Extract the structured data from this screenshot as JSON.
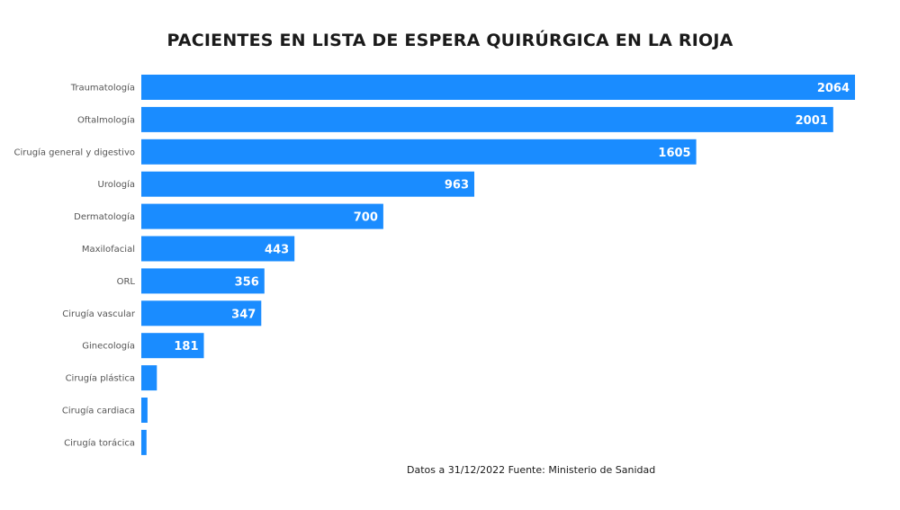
{
  "chart_data": {
    "type": "bar",
    "orientation": "horizontal",
    "title": "PACIENTES EN LISTA DE ESPERA QUIRÚRGICA EN LA RIOJA",
    "categories": [
      "Traumatología",
      "Oftalmología",
      "Cirugía general y digestivo",
      "Urología",
      "Dermatología",
      "Maxilofacial",
      "ORL",
      "Cirugía vascular",
      "Ginecología",
      "Cirugía plástica",
      "Cirugía cardiaca",
      "Cirugía torácica"
    ],
    "values": [
      2064,
      2001,
      1605,
      963,
      700,
      443,
      356,
      347,
      181,
      45,
      18,
      15
    ],
    "data_labels": [
      "2064",
      "2001",
      "1605",
      "963",
      "700",
      "443",
      "356",
      "347",
      "181",
      "",
      "",
      ""
    ],
    "xlim": [
      0,
      2064
    ],
    "grid": false,
    "legend": "none",
    "bar_color": "#1a8cff",
    "source": "Datos a 31/12/2022 Fuente: Ministerio de Sanidad"
  }
}
